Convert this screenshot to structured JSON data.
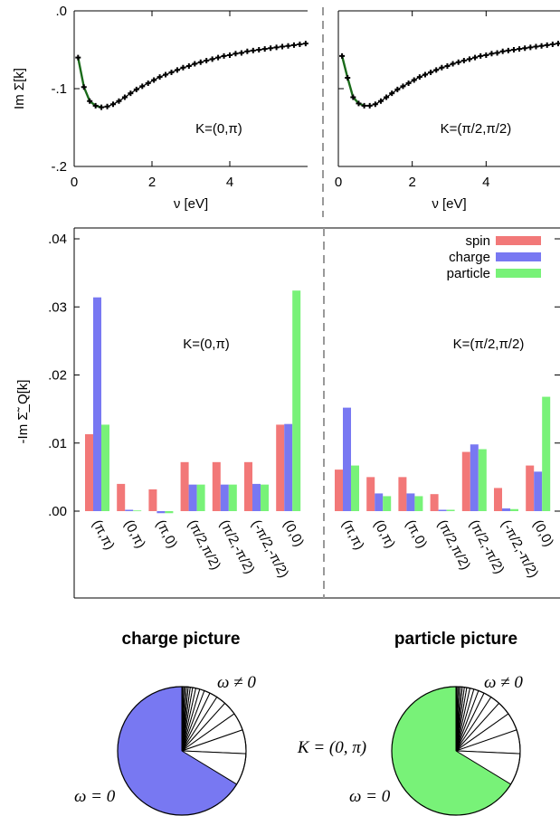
{
  "colors": {
    "spin": "#f27878",
    "charge": "#7878f2",
    "particle": "#78f278",
    "line": "#1a6b1a",
    "marker": "#000000",
    "divider": "#999999"
  },
  "chart_data": [
    {
      "type": "line",
      "panel": "top-left",
      "annotation": "K=(0,π)",
      "xlabel": "ν [eV]",
      "ylabel": "Im Σ[k]",
      "xlim": [
        0,
        6
      ],
      "ylim": [
        -0.2,
        0.0
      ],
      "xticks": [
        0,
        2,
        4
      ],
      "xtick_labels": [
        "0",
        "2",
        "4"
      ],
      "yticks": [
        0.0,
        -0.1,
        -0.2
      ],
      "ytick_labels": [
        ".0",
        "-.1",
        "-.2"
      ],
      "series": [
        {
          "x": [
            0.1,
            0.25,
            0.4,
            0.55,
            0.7,
            0.85,
            1.0,
            1.15,
            1.3,
            1.45,
            1.6,
            1.75,
            1.9,
            2.05,
            2.2,
            2.35,
            2.5,
            2.65,
            2.8,
            2.95,
            3.1,
            3.25,
            3.4,
            3.55,
            3.7,
            3.85,
            4.0,
            4.15,
            4.3,
            4.45,
            4.6,
            4.75,
            4.9,
            5.05,
            5.2,
            5.35,
            5.5,
            5.65,
            5.8,
            5.95
          ],
          "y": [
            -0.06,
            -0.098,
            -0.116,
            -0.122,
            -0.124,
            -0.123,
            -0.12,
            -0.116,
            -0.111,
            -0.106,
            -0.101,
            -0.097,
            -0.093,
            -0.089,
            -0.085,
            -0.082,
            -0.079,
            -0.076,
            -0.073,
            -0.071,
            -0.068,
            -0.066,
            -0.064,
            -0.062,
            -0.06,
            -0.058,
            -0.057,
            -0.055,
            -0.054,
            -0.052,
            -0.051,
            -0.05,
            -0.049,
            -0.048,
            -0.047,
            -0.046,
            -0.045,
            -0.044,
            -0.043,
            -0.042
          ]
        }
      ]
    },
    {
      "type": "line",
      "panel": "top-right",
      "annotation": "K=(π/2,π/2)",
      "xlabel": "ν [eV]",
      "xlim": [
        0,
        6
      ],
      "ylim": [
        -0.2,
        0.0
      ],
      "xticks": [
        0,
        2,
        4
      ],
      "xtick_labels": [
        "0",
        "2",
        "4"
      ],
      "series": [
        {
          "x": [
            0.1,
            0.25,
            0.4,
            0.55,
            0.7,
            0.85,
            1.0,
            1.15,
            1.3,
            1.45,
            1.6,
            1.75,
            1.9,
            2.05,
            2.2,
            2.35,
            2.5,
            2.65,
            2.8,
            2.95,
            3.1,
            3.25,
            3.4,
            3.55,
            3.7,
            3.85,
            4.0,
            4.15,
            4.3,
            4.45,
            4.6,
            4.75,
            4.9,
            5.05,
            5.2,
            5.35,
            5.5,
            5.65,
            5.8,
            5.95
          ],
          "y": [
            -0.058,
            -0.086,
            -0.111,
            -0.119,
            -0.122,
            -0.122,
            -0.12,
            -0.116,
            -0.111,
            -0.106,
            -0.101,
            -0.097,
            -0.093,
            -0.089,
            -0.085,
            -0.082,
            -0.079,
            -0.076,
            -0.073,
            -0.071,
            -0.068,
            -0.066,
            -0.064,
            -0.062,
            -0.06,
            -0.058,
            -0.057,
            -0.055,
            -0.054,
            -0.052,
            -0.051,
            -0.05,
            -0.049,
            -0.048,
            -0.047,
            -0.046,
            -0.045,
            -0.044,
            -0.043,
            -0.042
          ]
        }
      ]
    },
    {
      "type": "bar",
      "panel": "middle",
      "ylabel": "-Im Σ̃_Q[k]",
      "ylim": [
        0,
        0.042
      ],
      "yticks": [
        0.0,
        0.01,
        0.02,
        0.03,
        0.04
      ],
      "ytick_labels": [
        ".00",
        ".01",
        ".02",
        ".03",
        ".04"
      ],
      "legend": [
        "spin",
        "charge",
        "particle"
      ],
      "legend_position": "top-right",
      "groups": [
        {
          "annotation": "K=(0,π)",
          "categories": [
            "(π,π)",
            "(0,π)",
            "(π,0)",
            "(π/2,π/2)",
            "(π/2,-π/2)",
            "(-π/2,-π/2)",
            "(0,0)"
          ],
          "series": [
            {
              "name": "spin",
              "values": [
                0.0113,
                0.004,
                0.0032,
                0.0072,
                0.0072,
                0.0072,
                0.0127
              ]
            },
            {
              "name": "charge",
              "values": [
                0.0314,
                0.0002,
                -0.0003,
                0.0039,
                0.0039,
                0.004,
                0.0128
              ]
            },
            {
              "name": "particle",
              "values": [
                0.0127,
                0.0001,
                -0.0003,
                0.0039,
                0.0039,
                0.0039,
                0.0324
              ]
            }
          ]
        },
        {
          "annotation": "K=(π/2,π/2)",
          "categories": [
            "(π,π)",
            "(0,π)",
            "(π,0)",
            "(π/2,π/2)",
            "(π/2,-π/2)",
            "(-π/2,-π/2)",
            "(0,0)"
          ],
          "series": [
            {
              "name": "spin",
              "values": [
                0.0061,
                0.005,
                0.005,
                0.0025,
                0.0087,
                0.0034,
                0.0067
              ]
            },
            {
              "name": "charge",
              "values": [
                0.0152,
                0.0026,
                0.0026,
                0.0002,
                0.0098,
                0.0004,
                0.0058
              ]
            },
            {
              "name": "particle",
              "values": [
                0.0067,
                0.0022,
                0.0022,
                0.0002,
                0.0091,
                0.0003,
                0.0168
              ]
            }
          ]
        }
      ]
    },
    {
      "type": "pie",
      "panel": "bottom-left",
      "title": "charge picture",
      "labels": [
        "ω = 0",
        "ω ≠ 0"
      ],
      "color": "#7878f2",
      "main_fraction": 0.67,
      "rest_slices": [
        0.08,
        0.06,
        0.045,
        0.035,
        0.025,
        0.02,
        0.015,
        0.012,
        0.01,
        0.008,
        0.006,
        0.005,
        0.004,
        0.004,
        0.003,
        0.003,
        0.002
      ]
    },
    {
      "type": "pie",
      "panel": "bottom-right",
      "title": "particle picture",
      "labels": [
        "ω = 0",
        "ω ≠ 0"
      ],
      "color": "#78f278",
      "main_fraction": 0.67,
      "rest_slices": [
        0.08,
        0.06,
        0.045,
        0.035,
        0.025,
        0.02,
        0.015,
        0.012,
        0.01,
        0.008,
        0.006,
        0.005,
        0.004,
        0.004,
        0.003,
        0.003,
        0.002
      ]
    }
  ],
  "middle_label": "K = (0, π)"
}
